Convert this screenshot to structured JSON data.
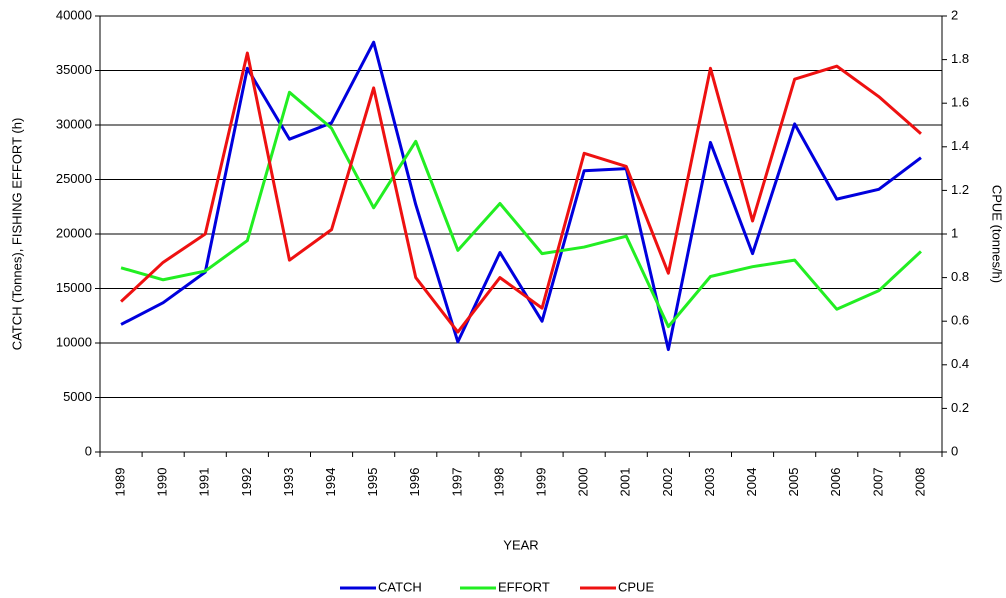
{
  "chart_data": {
    "type": "line",
    "xlabel": "YEAR",
    "ylabel": "CATCH (Tonnes), FISHING EFFORT (h)",
    "y2label": "CPUE (tonnes/h)",
    "categories": [
      "1989",
      "1990",
      "1991",
      "1992",
      "1993",
      "1994",
      "1995",
      "1996",
      "1997",
      "1998",
      "1999",
      "2000",
      "2001",
      "2002",
      "2003",
      "2004",
      "2005",
      "2006",
      "2007",
      "2008"
    ],
    "ylim": [
      0,
      40000
    ],
    "yticks": [
      0,
      5000,
      10000,
      15000,
      20000,
      25000,
      30000,
      35000,
      40000
    ],
    "y2lim": [
      0,
      2
    ],
    "y2ticks": [
      0,
      0.2,
      0.4,
      0.6,
      0.8,
      1,
      1.2,
      1.4,
      1.6,
      1.8,
      2
    ],
    "grid": true,
    "legend": "bottom",
    "series": [
      {
        "name": "CATCH",
        "color": "#0000dd",
        "values": [
          11700,
          13700,
          16500,
          35200,
          28700,
          30200,
          37600,
          22700,
          10100,
          18300,
          12000,
          25800,
          26000,
          9400,
          28400,
          18200,
          30100,
          23200,
          24100,
          27000
        ]
      },
      {
        "name": "EFFORT",
        "color": "#22ee22",
        "values": [
          16900,
          15800,
          16600,
          19400,
          33000,
          29700,
          22400,
          28500,
          18500,
          22800,
          18200,
          18800,
          19800,
          11500,
          16100,
          17000,
          17600,
          13100,
          14800,
          18400
        ]
      },
      {
        "name": "CPUE",
        "color": "#ee1111",
        "axis": "y2",
        "values": [
          0.69,
          0.87,
          1.0,
          1.83,
          0.88,
          1.02,
          1.67,
          0.8,
          0.55,
          0.8,
          0.66,
          1.37,
          1.31,
          0.82,
          1.76,
          1.06,
          1.71,
          1.77,
          1.63,
          1.46
        ]
      }
    ]
  }
}
